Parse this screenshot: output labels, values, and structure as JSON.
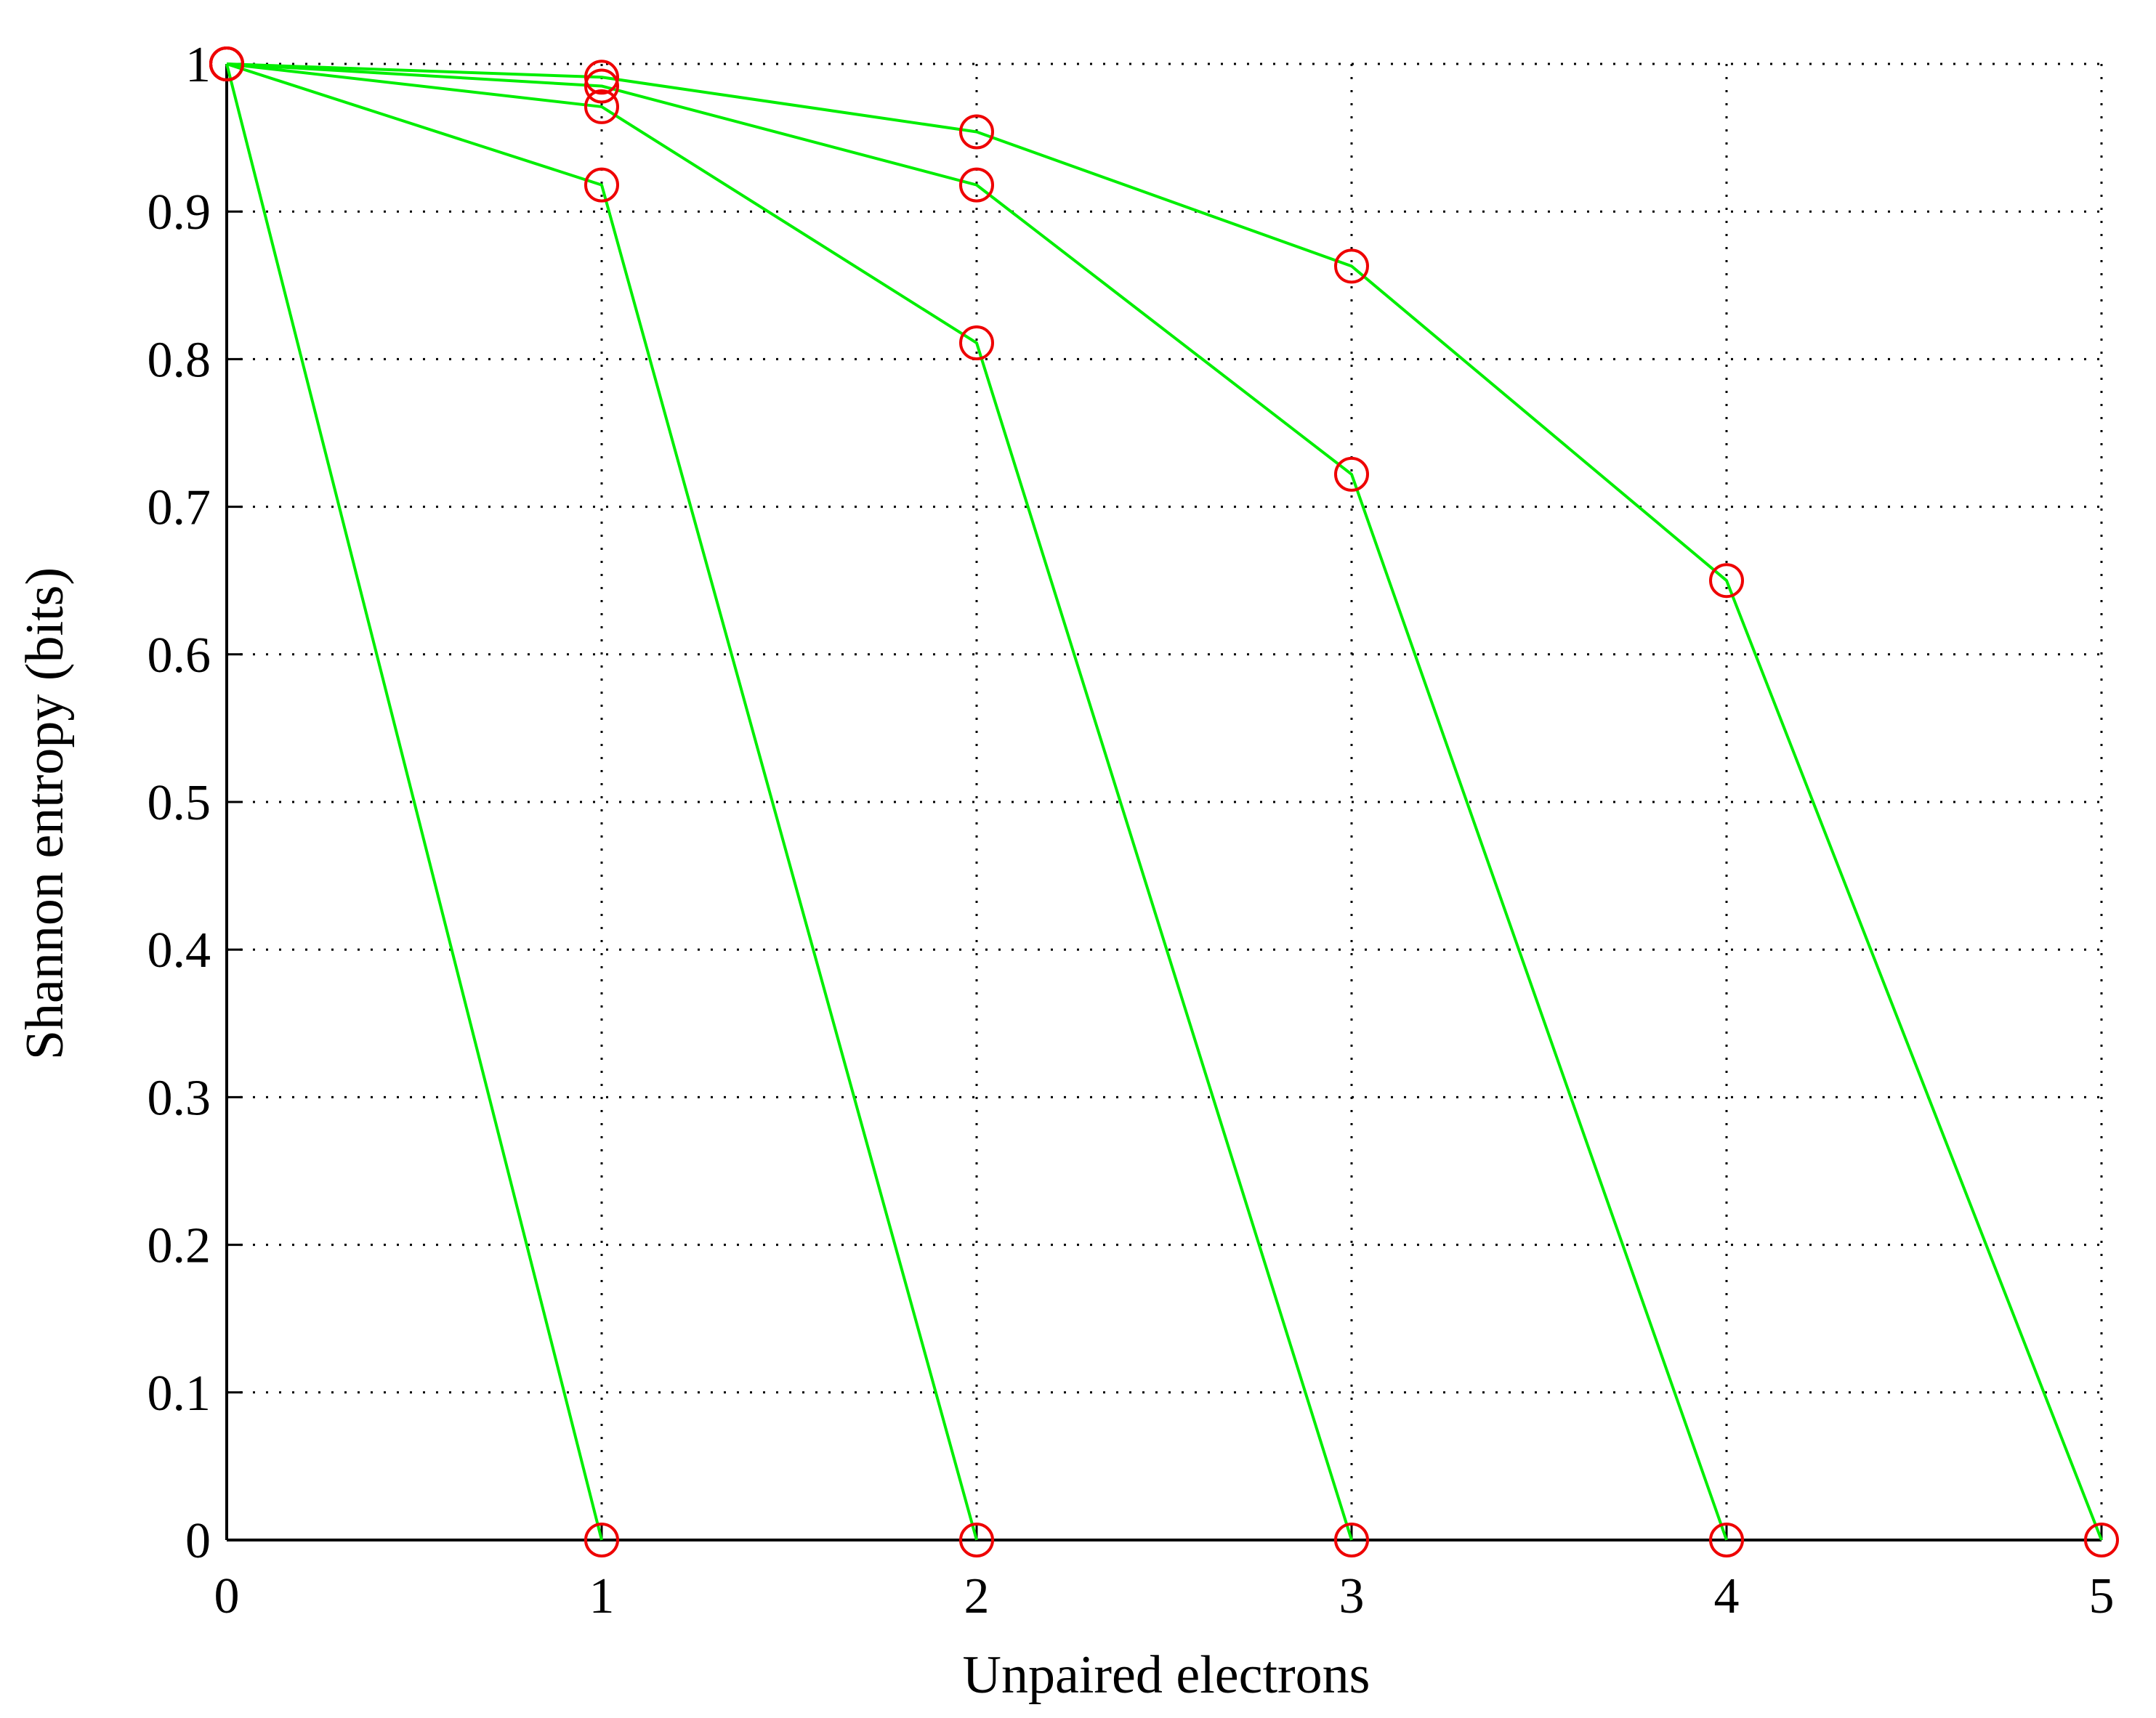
{
  "chart_data": {
    "type": "line",
    "title": "",
    "xlabel": "Unpaired electrons",
    "ylabel": "Shannon entropy (bits)",
    "xlim": [
      0,
      5
    ],
    "ylim": [
      0,
      1
    ],
    "xticks": [
      0,
      1,
      2,
      3,
      4,
      5
    ],
    "xtick_labels": [
      "0",
      "1",
      "2",
      "3",
      "4",
      "5"
    ],
    "yticks": [
      0,
      0.1,
      0.2,
      0.3,
      0.4,
      0.5,
      0.6,
      0.7,
      0.8,
      0.9,
      1
    ],
    "ytick_labels": [
      "0",
      "0.1",
      "0.2",
      "0.3",
      "0.4",
      "0.5",
      "0.6",
      "0.7",
      "0.8",
      "0.9",
      "1"
    ],
    "grid": true,
    "legend": "none",
    "line_color": "#00ee00",
    "marker_color": "#ee0000",
    "marker": "circle",
    "series": [
      {
        "x": [
          0,
          1
        ],
        "y": [
          1,
          0
        ]
      },
      {
        "x": [
          0,
          1,
          2
        ],
        "y": [
          1,
          0.918,
          0
        ]
      },
      {
        "x": [
          0,
          1,
          2,
          3
        ],
        "y": [
          1,
          0.971,
          0.811,
          0
        ]
      },
      {
        "x": [
          0,
          1,
          2,
          3,
          4
        ],
        "y": [
          1,
          0.985,
          0.918,
          0.722,
          0
        ]
      },
      {
        "x": [
          0,
          1,
          2,
          3,
          4,
          5
        ],
        "y": [
          1,
          0.991,
          0.954,
          0.863,
          0.65,
          0
        ]
      }
    ]
  }
}
